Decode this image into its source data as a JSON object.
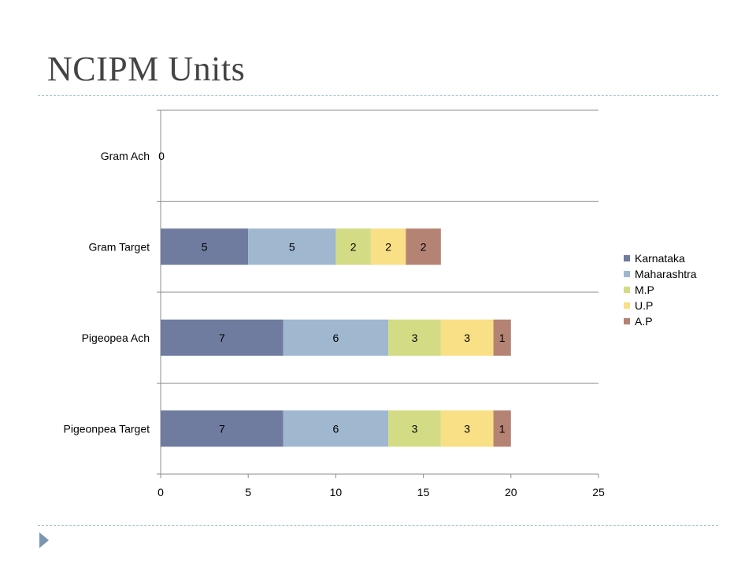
{
  "title": "NCIPM Units",
  "chart_data": {
    "type": "bar",
    "orientation": "horizontal",
    "stacked": true,
    "categories": [
      "Pigeonpea Target",
      "Pigeopea Ach",
      "Gram Target",
      "Gram Ach"
    ],
    "series": [
      {
        "name": "Karnataka",
        "color": "#6f7b9f",
        "values": [
          7,
          7,
          5,
          0
        ]
      },
      {
        "name": "Maharashtra",
        "color": "#9fb7cf",
        "values": [
          6,
          6,
          5,
          0
        ]
      },
      {
        "name": "M.P",
        "color": "#d3dc84",
        "values": [
          3,
          3,
          2,
          0
        ]
      },
      {
        "name": "U.P",
        "color": "#f9df86",
        "values": [
          3,
          3,
          2,
          0
        ]
      },
      {
        "name": "A.P",
        "color": "#b58374",
        "values": [
          1,
          1,
          2,
          0
        ]
      }
    ],
    "xlim": [
      0,
      25
    ],
    "xticks": [
      0,
      5,
      10,
      15,
      20,
      25
    ],
    "grid": "horizontal category separators",
    "legend": "right",
    "show_data_labels": true
  }
}
